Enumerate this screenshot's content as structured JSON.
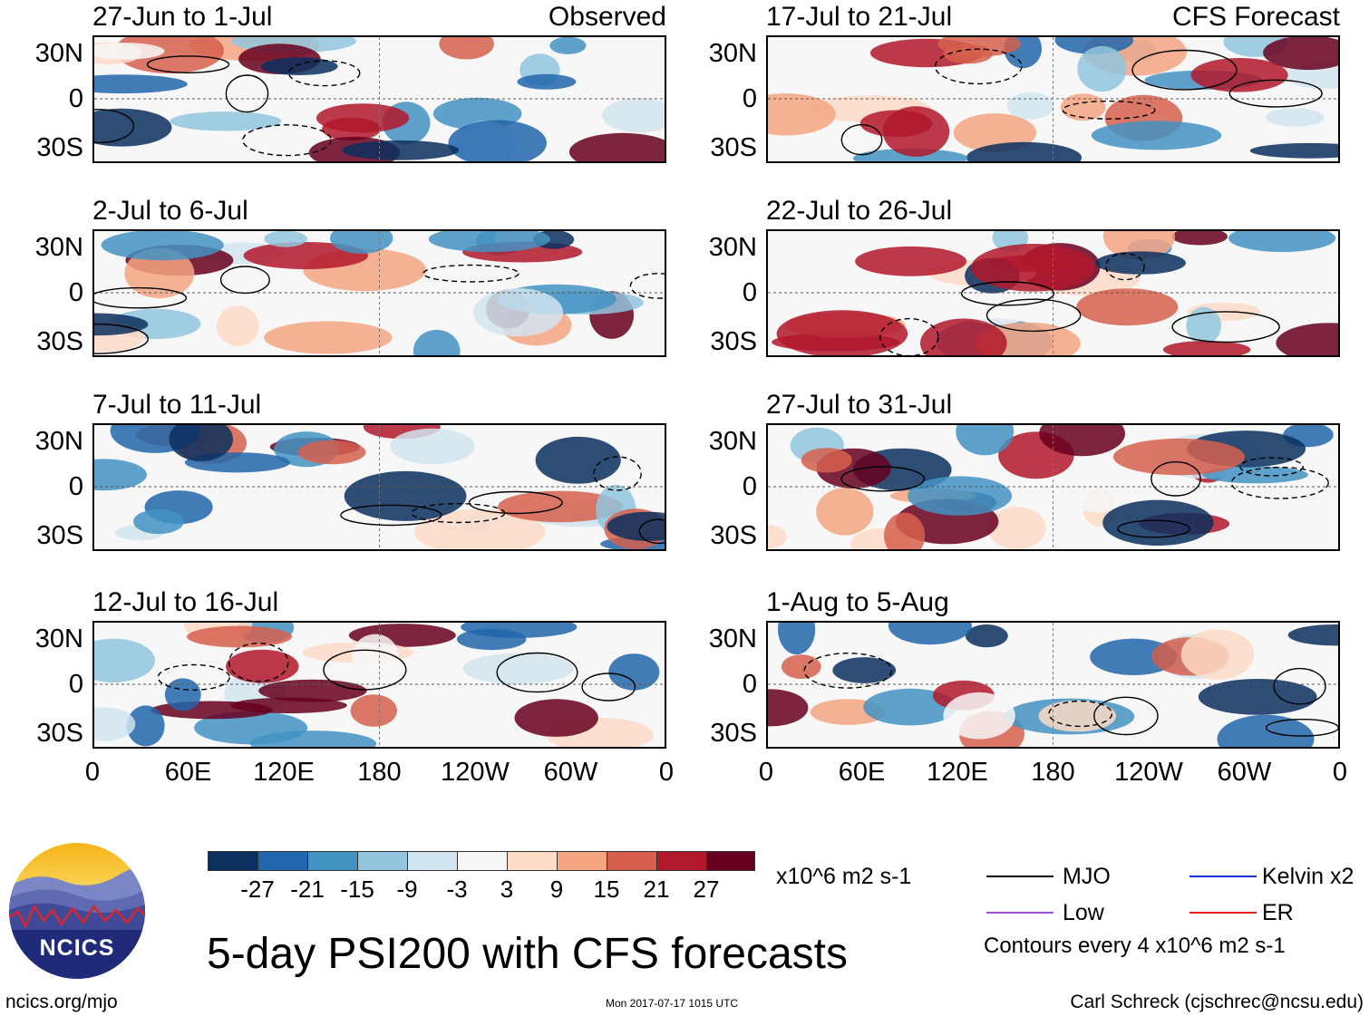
{
  "chart_data": {
    "type": "heatmap",
    "title": "5-day PSI200 with CFS forecasts",
    "variable": "PSI200",
    "units": "x10^6 m2 s-1",
    "y_ticks": [
      "30N",
      "0",
      "30S"
    ],
    "x_ticks": [
      "0",
      "60E",
      "120E",
      "180",
      "120W",
      "60W",
      "0"
    ],
    "columns": [
      {
        "label": "Observed",
        "panels": [
          "27-Jun to 1-Jul",
          "2-Jul to 6-Jul",
          "7-Jul to 11-Jul",
          "12-Jul to 16-Jul"
        ]
      },
      {
        "label": "CFS Forecast",
        "panels": [
          "17-Jul to 21-Jul",
          "22-Jul to 26-Jul",
          "27-Jul to 31-Jul",
          "1-Aug to 5-Aug"
        ]
      }
    ],
    "colorbar": {
      "levels": [
        -27,
        -21,
        -15,
        -9,
        -3,
        3,
        9,
        15,
        21,
        27
      ],
      "labels": [
        "-27",
        "-21",
        "-15",
        "-9",
        "-3",
        "3",
        "9",
        "15",
        "21",
        "27"
      ],
      "colors": [
        "#0b2f5e",
        "#2166ac",
        "#4393c3",
        "#92c5de",
        "#d1e5f0",
        "#f7f7f7",
        "#fddbc7",
        "#f4a582",
        "#d6604d",
        "#b2182b",
        "#67001f"
      ]
    },
    "legend": [
      {
        "label": "MJO",
        "color": "#000000"
      },
      {
        "label": "Kelvin x2",
        "color": "#1c2fd6"
      },
      {
        "label": "Low",
        "color": "#9b4fd6"
      },
      {
        "label": "ER",
        "color": "#e0201b"
      }
    ],
    "contour_note": "Contours every 4 x10^6 m2 s-1"
  },
  "logo": {
    "text": "NCICS"
  },
  "footer": {
    "website": "ncics.org/mjo",
    "timestamp": "Mon 2017-07-17 1015 UTC",
    "author": "Carl Schreck (cjschrec@ncsu.edu)"
  }
}
